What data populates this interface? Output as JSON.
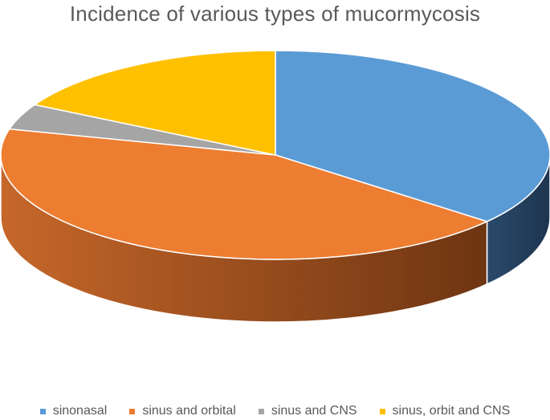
{
  "chart_data": {
    "type": "pie",
    "title": "Incidence of various types of mucormycosis",
    "categories": [
      "sinonasal",
      "sinus and orbital",
      "sinus and CNS",
      "sinus, orbit and CNS"
    ],
    "values": [
      36,
      43,
      4,
      17
    ],
    "colors": [
      "#5B9BD5",
      "#ED7D31",
      "#A5A5A5",
      "#FFC000"
    ],
    "legend_position": "bottom",
    "style": "3d"
  }
}
